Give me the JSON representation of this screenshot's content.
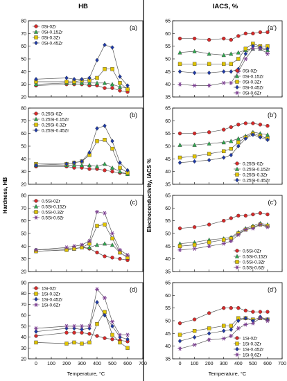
{
  "figure": {
    "left_heading": "HB",
    "right_heading": "IACS, %",
    "left_ylabel": "Hardness, HB",
    "right_ylabel": "Electroconductivity, IACS %",
    "left_xlabel": "Temperature, °C",
    "right_xlabel": "Temperature, °C"
  },
  "styles": {
    "0Zr": {
      "color": "#d42a2a",
      "marker": "circle"
    },
    "0.15Zr": {
      "color": "#2fa84f",
      "marker": "triangle"
    },
    "0.3Zr": {
      "color": "#e0c400",
      "marker": "square"
    },
    "0.45Zr": {
      "color": "#1f3aa6",
      "marker": "diamond"
    },
    "0.6Zr": {
      "color": "#7a3d8f",
      "marker": "star"
    },
    "line_color": "#555555"
  },
  "chart_data": [
    {
      "type": "line",
      "panel_label": "(a)",
      "column": "left",
      "row": 0,
      "x": [
        0,
        200,
        250,
        300,
        350,
        400,
        450,
        500,
        550,
        600
      ],
      "ylim": [
        20,
        80
      ],
      "yticks": [
        20,
        30,
        40,
        50,
        60,
        70,
        80
      ],
      "xticks": [
        0,
        100,
        200,
        300,
        400,
        500,
        600,
        700
      ],
      "xticklabels_shown": false,
      "legend": "top-left",
      "series": [
        {
          "name": "0Si-0Zr",
          "style": "0Zr",
          "values": [
            29,
            30,
            30,
            30,
            29,
            29,
            27,
            27,
            25,
            24
          ]
        },
        {
          "name": "0Si-0.15Zr",
          "style": "0.15Zr",
          "values": [
            30,
            31,
            31,
            31,
            31,
            31,
            31,
            30,
            28,
            27
          ]
        },
        {
          "name": "0Si-0.3Zr",
          "style": "0.3Zr",
          "values": [
            32,
            32,
            32,
            33,
            33,
            35,
            42,
            42,
            31,
            26
          ]
        },
        {
          "name": "0Si-0.45Zr",
          "style": "0.45Zr",
          "values": [
            34,
            35,
            34,
            34,
            35,
            49,
            61,
            59,
            36,
            29
          ]
        }
      ]
    },
    {
      "type": "line",
      "panel_label": "(b)",
      "column": "left",
      "row": 1,
      "x": [
        0,
        200,
        250,
        300,
        350,
        400,
        450,
        500,
        550,
        600
      ],
      "ylim": [
        20,
        80
      ],
      "yticks": [
        20,
        30,
        40,
        50,
        60,
        70,
        80
      ],
      "xticks": [
        0,
        100,
        200,
        300,
        400,
        500,
        600,
        700
      ],
      "xticklabels_shown": false,
      "legend": "top-left",
      "series": [
        {
          "name": "0.25Si-0Zr",
          "style": "0Zr",
          "values": [
            34,
            34,
            33,
            33,
            32,
            32,
            31,
            30,
            29,
            28
          ]
        },
        {
          "name": "0.25Si-0.15Zr",
          "style": "0.15Zr",
          "values": [
            35,
            35,
            35,
            35,
            35,
            34,
            36,
            33,
            30,
            28
          ]
        },
        {
          "name": "0.25Si-0.3Zr",
          "style": "0.3Zr",
          "values": [
            36,
            36,
            37,
            38,
            43,
            54,
            55,
            48,
            33,
            29
          ]
        },
        {
          "name": "0.25Si-0.45Zr",
          "style": "0.45Zr",
          "values": [
            35,
            36,
            37,
            38,
            45,
            64,
            66,
            54,
            37,
            31
          ]
        }
      ]
    },
    {
      "type": "line",
      "panel_label": "(c)",
      "column": "left",
      "row": 2,
      "x": [
        0,
        200,
        250,
        300,
        350,
        400,
        450,
        500,
        550,
        600
      ],
      "ylim": [
        20,
        80
      ],
      "yticks": [
        20,
        30,
        40,
        50,
        60,
        70,
        80
      ],
      "xticks": [
        0,
        100,
        200,
        300,
        400,
        500,
        600,
        700
      ],
      "xticklabels_shown": false,
      "legend": "top-left",
      "series": [
        {
          "name": "0.5Si-0Zr",
          "style": "0Zr",
          "values": [
            36,
            37,
            38,
            39,
            38,
            35,
            32,
            31,
            30,
            29
          ]
        },
        {
          "name": "0.5Si-0.15Zr",
          "style": "0.15Zr",
          "values": [
            37,
            38,
            38,
            39,
            39,
            41,
            42,
            41,
            35,
            31
          ]
        },
        {
          "name": "0.5Si-0.3Zr",
          "style": "0.3Zr",
          "values": [
            36,
            37,
            38,
            39,
            42,
            56,
            57,
            46,
            35,
            31
          ]
        },
        {
          "name": "0.5Si-0.6Zr",
          "style": "0.6Zr",
          "values": [
            37,
            39,
            40,
            41,
            44,
            67,
            66,
            50,
            37,
            33
          ]
        }
      ]
    },
    {
      "type": "line",
      "panel_label": "(d)",
      "column": "left",
      "row": 3,
      "x": [
        0,
        200,
        250,
        300,
        350,
        400,
        450,
        500,
        550,
        600
      ],
      "ylim": [
        20,
        90
      ],
      "yticks": [
        20,
        30,
        40,
        50,
        60,
        70,
        80,
        90
      ],
      "xticks": [
        0,
        100,
        200,
        300,
        400,
        500,
        600,
        700
      ],
      "xticklabels_shown": true,
      "legend": "top-left",
      "series": [
        {
          "name": "1Si-0Zr",
          "style": "0Zr",
          "values": [
            41,
            44,
            44,
            44,
            43,
            41,
            39,
            38,
            37,
            36
          ]
        },
        {
          "name": "1Si-0.3Zr",
          "style": "0.3Zr",
          "values": [
            35,
            34,
            35,
            34,
            35,
            52,
            63,
            42,
            35,
            30
          ]
        },
        {
          "name": "1Si-0.45Zr",
          "style": "0.45Zr",
          "values": [
            45,
            48,
            48,
            47,
            48,
            72,
            60,
            50,
            40,
            38
          ]
        },
        {
          "name": "1Si-0.6Zr",
          "style": "0.6Zr",
          "values": [
            48,
            50,
            50,
            50,
            50,
            84,
            76,
            54,
            42,
            42
          ]
        }
      ]
    },
    {
      "type": "line",
      "panel_label": "(a’)",
      "column": "right",
      "row": 0,
      "x": [
        0,
        100,
        200,
        300,
        350,
        400,
        450,
        500,
        550,
        600
      ],
      "ylim": [
        35,
        65
      ],
      "yticks": [
        35,
        40,
        45,
        50,
        55,
        60,
        65
      ],
      "xticks": [
        0,
        100,
        200,
        300,
        400,
        500,
        600,
        700
      ],
      "xticklabels_shown": false,
      "legend": "bottom-right",
      "series": [
        {
          "name": "0Si-0Zr",
          "style": "0Zr",
          "values": [
            58,
            58,
            57.5,
            58,
            57.5,
            59,
            60,
            60,
            60.5,
            60.5
          ]
        },
        {
          "name": "0Si-0.15Zr",
          "style": "0.15Zr",
          "values": [
            52.5,
            53,
            52,
            51.5,
            52,
            52.5,
            53.5,
            54,
            54,
            53.5
          ]
        },
        {
          "name": "0Si-0.3Zr",
          "style": "0.3Zr",
          "values": [
            48,
            48,
            48,
            48,
            48,
            50,
            54,
            56,
            55,
            55
          ]
        },
        {
          "name": "0Si-0.45Zr",
          "style": "0.45Zr",
          "values": [
            45,
            44.5,
            44.5,
            45,
            45,
            46,
            52,
            55,
            54.5,
            54
          ]
        },
        {
          "name": "0Si-0.6Zr",
          "style": "0.6Zr",
          "values": [
            40,
            39.5,
            39.5,
            40.5,
            40.5,
            45,
            50,
            54,
            54,
            52
          ]
        }
      ]
    },
    {
      "type": "line",
      "panel_label": "(b’)",
      "column": "right",
      "row": 1,
      "x": [
        0,
        100,
        200,
        300,
        350,
        400,
        450,
        500,
        550,
        600
      ],
      "ylim": [
        35,
        65
      ],
      "yticks": [
        35,
        40,
        45,
        50,
        55,
        60,
        65
      ],
      "xticks": [
        0,
        100,
        200,
        300,
        400,
        500,
        600,
        700
      ],
      "xticklabels_shown": false,
      "legend": "bottom-right",
      "series": [
        {
          "name": "0.25Si-0Zr",
          "style": "0Zr",
          "values": [
            55,
            55,
            55.5,
            56.5,
            57.5,
            58.5,
            59,
            59,
            58.5,
            58
          ]
        },
        {
          "name": "0.25Si-0.15Zr",
          "style": "0.15Zr",
          "values": [
            50.5,
            50.5,
            51,
            51.5,
            52,
            53,
            54,
            55.5,
            55,
            54.5
          ]
        },
        {
          "name": "0.25Si-0.3Zr",
          "style": "0.3Zr",
          "values": [
            45.5,
            46,
            47,
            48,
            49,
            51.5,
            53.5,
            55,
            54,
            53
          ]
        },
        {
          "name": "0.25Si-0.45Zr",
          "style": "0.45Zr",
          "values": [
            43.5,
            44,
            44.5,
            45.5,
            46.5,
            50,
            53,
            54.5,
            53.5,
            52.5
          ]
        }
      ]
    },
    {
      "type": "line",
      "panel_label": "(c’)",
      "column": "right",
      "row": 2,
      "x": [
        0,
        100,
        200,
        300,
        350,
        400,
        450,
        500,
        550,
        600
      ],
      "ylim": [
        35,
        65
      ],
      "yticks": [
        35,
        40,
        45,
        50,
        55,
        60,
        65
      ],
      "xticks": [
        0,
        100,
        200,
        300,
        400,
        500,
        600,
        700
      ],
      "xticklabels_shown": false,
      "legend": "bottom-right",
      "series": [
        {
          "name": "0.5Si-0Zr",
          "style": "0Zr",
          "values": [
            52,
            52.5,
            53.5,
            55,
            56,
            57,
            57,
            57.5,
            58,
            57.5
          ]
        },
        {
          "name": "0.5Si-0.15Zr",
          "style": "0.15Zr",
          "values": [
            46,
            46.5,
            47.5,
            48,
            48.5,
            50.5,
            52,
            53,
            54,
            53.5
          ]
        },
        {
          "name": "0.5Si-0.3Zr",
          "style": "0.3Zr",
          "values": [
            45,
            45.5,
            46.5,
            47.5,
            48,
            50,
            51.5,
            52.5,
            53.5,
            53
          ]
        },
        {
          "name": "0.5Si-0.6Zr",
          "style": "0.6Zr",
          "values": [
            43.5,
            44,
            45,
            46,
            47,
            49.5,
            51.5,
            52,
            53.5,
            52.5
          ]
        }
      ]
    },
    {
      "type": "line",
      "panel_label": "(d’)",
      "column": "right",
      "row": 3,
      "x": [
        0,
        100,
        200,
        300,
        350,
        400,
        450,
        500,
        550,
        600
      ],
      "ylim": [
        35,
        65
      ],
      "yticks": [
        35,
        40,
        45,
        50,
        55,
        60,
        65
      ],
      "xticks": [
        0,
        100,
        200,
        300,
        400,
        500,
        600,
        700
      ],
      "xticklabels_shown": true,
      "legend": "bottom-right",
      "series": [
        {
          "name": "1Si-0Zr",
          "style": "0Zr",
          "values": [
            49,
            50.5,
            53,
            55,
            55,
            55,
            54,
            53.5,
            53.5,
            53.5
          ]
        },
        {
          "name": "1Si-0.3Zr",
          "style": "0.3Zr",
          "values": [
            44.5,
            46,
            47,
            48,
            48,
            51,
            51,
            50.5,
            51,
            50.5
          ]
        },
        {
          "name": "1Si-0.45Zr",
          "style": "0.45Zr",
          "values": [
            42,
            43.5,
            45,
            46,
            46.5,
            50,
            51,
            50,
            51.5,
            50.5
          ]
        },
        {
          "name": "1Si-0.6Zr",
          "style": "0.6Zr",
          "values": [
            39,
            40.5,
            42.5,
            43,
            44,
            47,
            48.5,
            49,
            51,
            50
          ]
        }
      ]
    }
  ]
}
